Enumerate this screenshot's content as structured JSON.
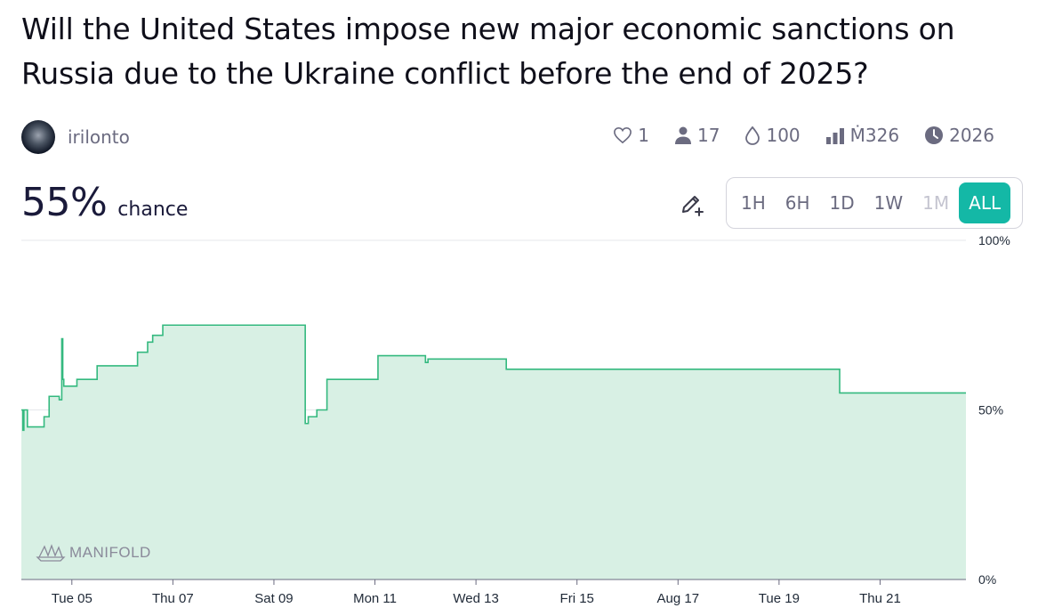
{
  "question": {
    "title": "Will the United States impose new major economic sanctions on Russia due to the Ukraine conflict before the end of 2025?"
  },
  "author": {
    "name": "irilonto"
  },
  "stats": {
    "likes": "1",
    "traders": "17",
    "liquidity": "100",
    "volume": "Ṁ326",
    "close": "2026"
  },
  "probability": {
    "value": "55%",
    "label": "chance"
  },
  "time_ranges": [
    {
      "label": "1H",
      "state": "normal"
    },
    {
      "label": "6H",
      "state": "normal"
    },
    {
      "label": "1D",
      "state": "normal"
    },
    {
      "label": "1W",
      "state": "normal"
    },
    {
      "label": "1M",
      "state": "disabled"
    },
    {
      "label": "ALL",
      "state": "active"
    }
  ],
  "watermark": "MANIFOLD",
  "colors": {
    "accent": "#14b8a6",
    "line": "#34b97f",
    "fill": "#d8f0e4"
  },
  "chart_data": {
    "type": "area",
    "step": true,
    "x_ticks": [
      "Tue 05",
      "Thu 07",
      "Sat 09",
      "Mon 11",
      "Wed 13",
      "Fri 15",
      "Aug 17",
      "Tue 19",
      "Thu 21"
    ],
    "xlim": [
      0,
      18.7
    ],
    "ylim": [
      0,
      100
    ],
    "y_ticks": [
      "0%",
      "50%",
      "100%"
    ],
    "x": [
      0,
      0.03,
      0.05,
      0.12,
      0.45,
      0.55,
      0.75,
      0.8,
      0.82,
      0.84,
      0.87,
      1.1,
      1.5,
      2.05,
      2.05,
      2.3,
      2.5,
      2.6,
      2.8,
      5.6,
      5.62,
      5.68,
      5.85,
      6.05,
      7.06,
      7.06,
      7.8,
      8.0,
      8.05,
      9.6,
      10.0,
      10.1,
      16.2,
      18.7
    ],
    "y": [
      50,
      44,
      50,
      45,
      48,
      54,
      53,
      71,
      59,
      57,
      57,
      59,
      63,
      63,
      63,
      67,
      70,
      72,
      75,
      75,
      46,
      48,
      50,
      59,
      59,
      66,
      66,
      64,
      65,
      62,
      62,
      62,
      55,
      55
    ]
  }
}
